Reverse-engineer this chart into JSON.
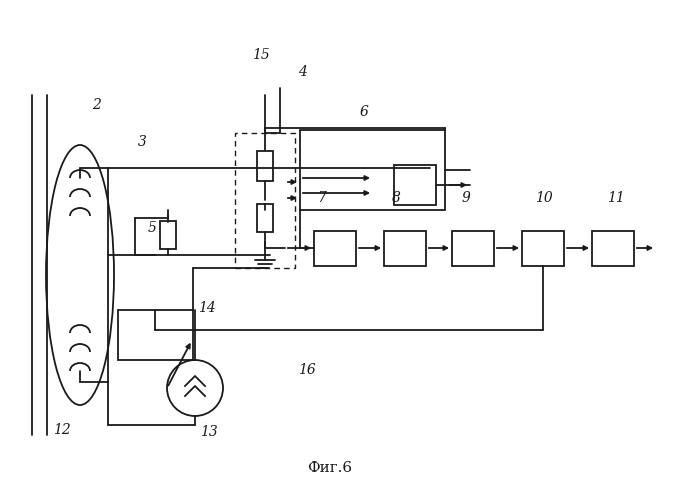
{
  "bg_color": "#ffffff",
  "line_color": "#1a1a1a",
  "fig_label": "Фиг.6",
  "lw": 1.3
}
